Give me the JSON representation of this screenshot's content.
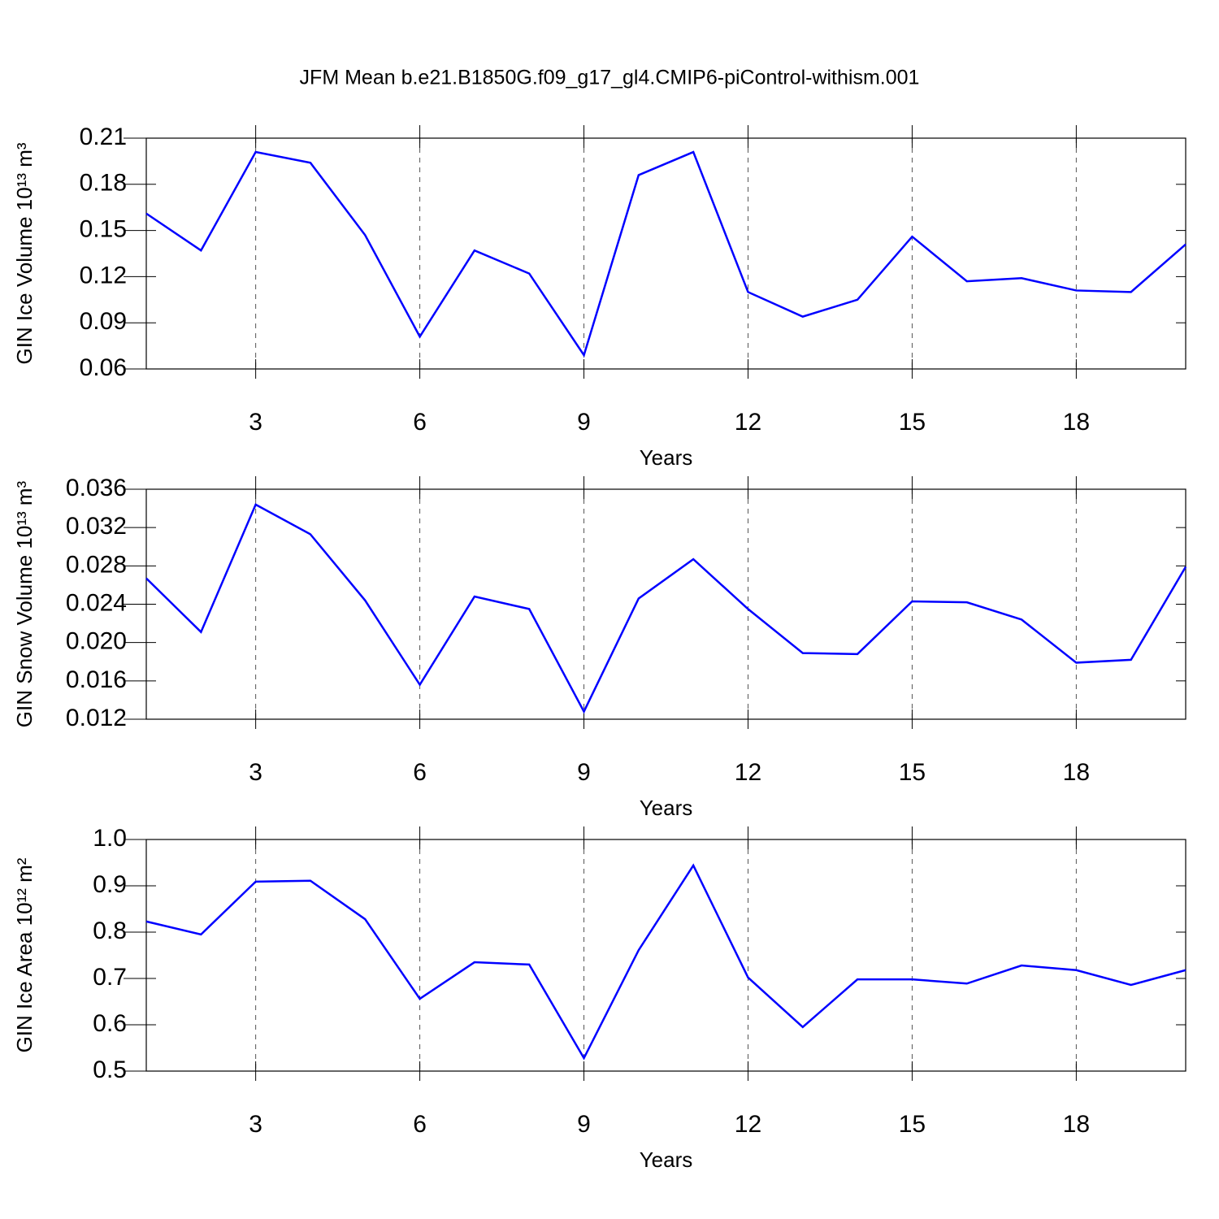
{
  "chart_data": [
    {
      "type": "line",
      "title": "JFM Mean b.e21.B1850G.f09_g17_gl4.CMIP6-piControl-withism.001",
      "ylabel": "GIN Ice Volume 10¹³ m³",
      "xlabel": "Years",
      "x": [
        1,
        2,
        3,
        4,
        5,
        6,
        7,
        8,
        9,
        10,
        11,
        12,
        13,
        14,
        15,
        16,
        17,
        18,
        19,
        20
      ],
      "xlim": [
        1,
        20
      ],
      "xticks": [
        3,
        6,
        9,
        12,
        15,
        18
      ],
      "ylim": [
        0.06,
        0.21
      ],
      "yticks": [
        0.06,
        0.09,
        0.12,
        0.15,
        0.18,
        0.21
      ],
      "grid": true,
      "color": "#0000ff",
      "values": [
        0.161,
        0.137,
        0.201,
        0.194,
        0.147,
        0.081,
        0.137,
        0.122,
        0.069,
        0.186,
        0.201,
        0.11,
        0.094,
        0.105,
        0.146,
        0.117,
        0.119,
        0.111,
        0.11,
        0.141
      ]
    },
    {
      "type": "line",
      "ylabel": "GIN Snow Volume 10¹³ m³",
      "xlabel": "Years",
      "x": [
        1,
        2,
        3,
        4,
        5,
        6,
        7,
        8,
        9,
        10,
        11,
        12,
        13,
        14,
        15,
        16,
        17,
        18,
        19,
        20
      ],
      "xlim": [
        1,
        20
      ],
      "xticks": [
        3,
        6,
        9,
        12,
        15,
        18
      ],
      "ylim": [
        0.012,
        0.036
      ],
      "yticks": [
        0.012,
        0.016,
        {
          "value": 0.02,
          "label": "0.020"
        },
        0.024,
        0.028,
        0.032,
        0.036
      ],
      "grid": true,
      "color": "#0000ff",
      "values": [
        0.0267,
        0.0211,
        0.0344,
        0.0313,
        0.0244,
        0.0156,
        0.0248,
        0.0235,
        0.0128,
        0.0246,
        0.0287,
        0.0235,
        0.0189,
        0.0188,
        0.0243,
        0.0242,
        0.0224,
        0.0179,
        0.0182,
        0.0279
      ]
    },
    {
      "type": "line",
      "ylabel": "GIN Ice Area 10¹² m²",
      "xlabel": "Years",
      "x": [
        1,
        2,
        3,
        4,
        5,
        6,
        7,
        8,
        9,
        10,
        11,
        12,
        13,
        14,
        15,
        16,
        17,
        18,
        19,
        20
      ],
      "xlim": [
        1,
        20
      ],
      "xticks": [
        3,
        6,
        9,
        12,
        15,
        18
      ],
      "ylim": [
        0.5,
        1.0
      ],
      "yticks": [
        0.5,
        0.6,
        0.7,
        0.8,
        0.9,
        {
          "value": 1,
          "label": "1.0"
        }
      ],
      "grid": true,
      "color": "#0000ff",
      "values": [
        0.823,
        0.795,
        0.909,
        0.911,
        0.828,
        0.656,
        0.735,
        0.73,
        0.528,
        0.761,
        0.944,
        0.702,
        0.595,
        0.698,
        0.698,
        0.689,
        0.728,
        0.718,
        0.686,
        0.718
      ]
    }
  ]
}
